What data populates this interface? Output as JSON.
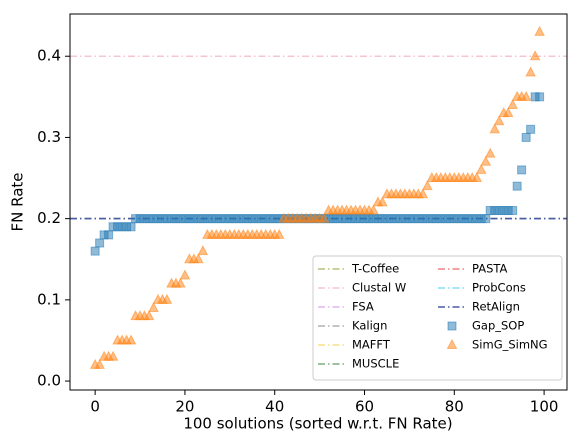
{
  "chart_data": {
    "type": "scatter",
    "xlabel": "100 solutions (sorted w.r.t. FN Rate)",
    "ylabel": "FN Rate",
    "x": [
      0,
      1,
      2,
      3,
      4,
      5,
      6,
      7,
      8,
      9,
      10,
      11,
      12,
      13,
      14,
      15,
      16,
      17,
      18,
      19,
      20,
      21,
      22,
      23,
      24,
      25,
      26,
      27,
      28,
      29,
      30,
      31,
      32,
      33,
      34,
      35,
      36,
      37,
      38,
      39,
      40,
      41,
      42,
      43,
      44,
      45,
      46,
      47,
      48,
      49,
      50,
      51,
      52,
      53,
      54,
      55,
      56,
      57,
      58,
      59,
      60,
      61,
      62,
      63,
      64,
      65,
      66,
      67,
      68,
      69,
      70,
      71,
      72,
      73,
      74,
      75,
      76,
      77,
      78,
      79,
      80,
      81,
      82,
      83,
      84,
      85,
      86,
      87,
      88,
      89,
      90,
      91,
      92,
      93,
      94,
      95,
      96,
      97,
      98,
      99
    ],
    "reference_lines": [
      {
        "name": "T-Coffee",
        "color": "#b3c27a",
        "value": 0.2
      },
      {
        "name": "Clustal W",
        "color": "#f5c6cf",
        "value": 0.4
      },
      {
        "name": "FSA",
        "color": "#e3b5f0",
        "value": 0.2
      },
      {
        "name": "Kalign",
        "color": "#b0b0b0",
        "value": 0.2
      },
      {
        "name": "MAFFT",
        "color": "#f5e08a",
        "value": 0.2
      },
      {
        "name": "MUSCLE",
        "color": "#7fae7f",
        "value": 0.2
      },
      {
        "name": "PASTA",
        "color": "#f08080",
        "value": 0.2
      },
      {
        "name": "ProbCons",
        "color": "#80e0f0",
        "value": 0.2
      },
      {
        "name": "RetAlign",
        "color": "#4a5aa8",
        "value": 0.2
      }
    ],
    "series": [
      {
        "name": "Gap_SOP",
        "color": "#1f77b4",
        "marker": "square",
        "values": [
          0.16,
          0.17,
          0.18,
          0.18,
          0.19,
          0.19,
          0.19,
          0.19,
          0.19,
          0.2,
          0.2,
          0.2,
          0.2,
          0.2,
          0.2,
          0.2,
          0.2,
          0.2,
          0.2,
          0.2,
          0.2,
          0.2,
          0.2,
          0.2,
          0.2,
          0.2,
          0.2,
          0.2,
          0.2,
          0.2,
          0.2,
          0.2,
          0.2,
          0.2,
          0.2,
          0.2,
          0.2,
          0.2,
          0.2,
          0.2,
          0.2,
          0.2,
          0.2,
          0.2,
          0.2,
          0.2,
          0.2,
          0.2,
          0.2,
          0.2,
          0.2,
          0.2,
          0.2,
          0.2,
          0.2,
          0.2,
          0.2,
          0.2,
          0.2,
          0.2,
          0.2,
          0.2,
          0.2,
          0.2,
          0.2,
          0.2,
          0.2,
          0.2,
          0.2,
          0.2,
          0.2,
          0.2,
          0.2,
          0.2,
          0.2,
          0.2,
          0.2,
          0.2,
          0.2,
          0.2,
          0.2,
          0.2,
          0.2,
          0.2,
          0.2,
          0.2,
          0.2,
          0.2,
          0.21,
          0.21,
          0.21,
          0.21,
          0.21,
          0.21,
          0.24,
          0.26,
          0.3,
          0.31,
          0.35,
          0.35
        ]
      },
      {
        "name": "SimG_SimNG",
        "color": "#ff7f0e",
        "marker": "triangle",
        "values": [
          0.02,
          0.02,
          0.03,
          0.03,
          0.03,
          0.05,
          0.05,
          0.05,
          0.05,
          0.08,
          0.08,
          0.08,
          0.08,
          0.09,
          0.1,
          0.1,
          0.1,
          0.12,
          0.12,
          0.12,
          0.13,
          0.15,
          0.15,
          0.15,
          0.16,
          0.18,
          0.18,
          0.18,
          0.18,
          0.18,
          0.18,
          0.18,
          0.18,
          0.18,
          0.18,
          0.18,
          0.18,
          0.18,
          0.18,
          0.18,
          0.18,
          0.18,
          0.2,
          0.2,
          0.2,
          0.2,
          0.2,
          0.2,
          0.2,
          0.2,
          0.2,
          0.2,
          0.21,
          0.21,
          0.21,
          0.21,
          0.21,
          0.21,
          0.21,
          0.21,
          0.21,
          0.21,
          0.21,
          0.22,
          0.22,
          0.23,
          0.23,
          0.23,
          0.23,
          0.23,
          0.23,
          0.23,
          0.23,
          0.23,
          0.24,
          0.25,
          0.25,
          0.25,
          0.25,
          0.25,
          0.25,
          0.25,
          0.25,
          0.25,
          0.25,
          0.25,
          0.26,
          0.27,
          0.28,
          0.31,
          0.32,
          0.33,
          0.33,
          0.34,
          0.35,
          0.35,
          0.35,
          0.38,
          0.4,
          0.43
        ]
      }
    ],
    "xlim": [
      -5.6,
      105.1
    ],
    "ylim": [
      -0.011,
      0.452
    ],
    "xticks": [
      0,
      20,
      40,
      60,
      80,
      100
    ],
    "yticks": [
      {
        "value": 0,
        "label": "0.0"
      },
      0.1,
      0.2,
      0.3,
      0.4
    ],
    "legend": "lower right"
  }
}
